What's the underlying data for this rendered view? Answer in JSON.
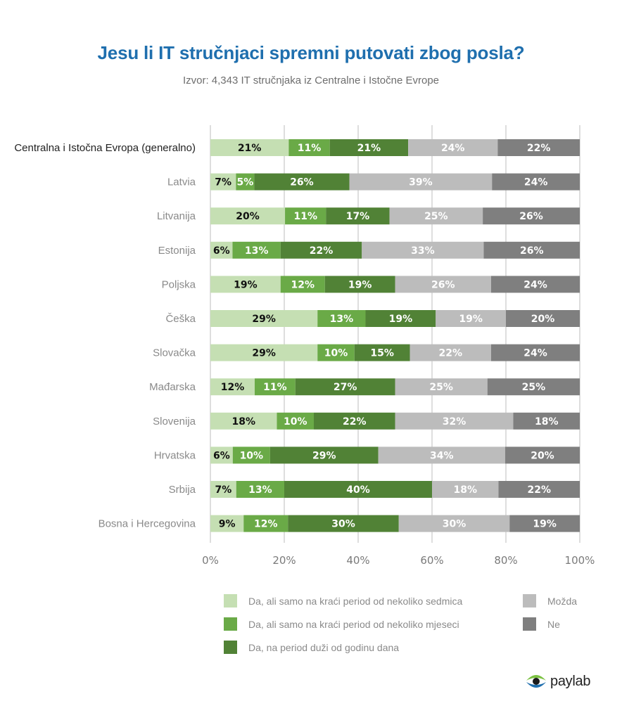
{
  "header": {
    "title": "Jesu li IT stručnjaci spremni putovati zbog posla?",
    "subtitle": "Izvor: 4,343 IT stručnjaka iz Centralne i Istočne Evrope"
  },
  "brand": {
    "logo_text": "paylab",
    "logo_icon": "eye-icon"
  },
  "colors": {
    "title": "#1f6fae",
    "series": [
      "#c5dfb3",
      "#6aaa47",
      "#518236",
      "#bcbcbc",
      "#7f7f7f"
    ],
    "label_text": [
      "#111111",
      "#ffffff",
      "#ffffff",
      "#ffffff",
      "#ffffff"
    ]
  },
  "chart_data": {
    "type": "bar",
    "orientation": "horizontal",
    "stacked": true,
    "title": "Jesu li IT stručnjaci spremni putovati zbog posla?",
    "subtitle": "Izvor: 4,343 IT stručnjaka iz Centralne i Istočne Evrope",
    "xlabel": "",
    "ylabel": "",
    "xlim": [
      0,
      100
    ],
    "grid": true,
    "legend_position": "bottom",
    "x_ticks": [
      "0%",
      "20%",
      "40%",
      "60%",
      "80%",
      "100%"
    ],
    "categories": [
      "Centralna i Istočna Evropa (generalno)",
      "Latvia",
      "Litvanija",
      "Estonija",
      "Poljska",
      "Češka",
      "Slovačka",
      "Mađarska",
      "Slovenija",
      "Hrvatska",
      "Srbija",
      "Bosna i Hercegovina"
    ],
    "series": [
      {
        "name": "Da, ali samo na kraći period od nekoliko sedmica",
        "values": [
          21,
          7,
          20,
          6,
          19,
          29,
          29,
          12,
          18,
          6,
          7,
          9
        ]
      },
      {
        "name": "Da, ali samo na kraći period od nekoliko mjeseci",
        "values": [
          11,
          5,
          11,
          13,
          12,
          13,
          10,
          11,
          10,
          10,
          13,
          12
        ]
      },
      {
        "name": "Da, na period duži od godinu dana",
        "values": [
          21,
          26,
          17,
          22,
          19,
          19,
          15,
          27,
          22,
          29,
          40,
          30
        ]
      },
      {
        "name": "Možda",
        "values": [
          24,
          39,
          25,
          33,
          26,
          19,
          22,
          25,
          32,
          34,
          18,
          30
        ]
      },
      {
        "name": "Ne",
        "values": [
          22,
          24,
          26,
          26,
          24,
          20,
          24,
          25,
          18,
          20,
          22,
          19
        ]
      }
    ],
    "legend_order": [
      0,
      1,
      2,
      3,
      4
    ]
  }
}
